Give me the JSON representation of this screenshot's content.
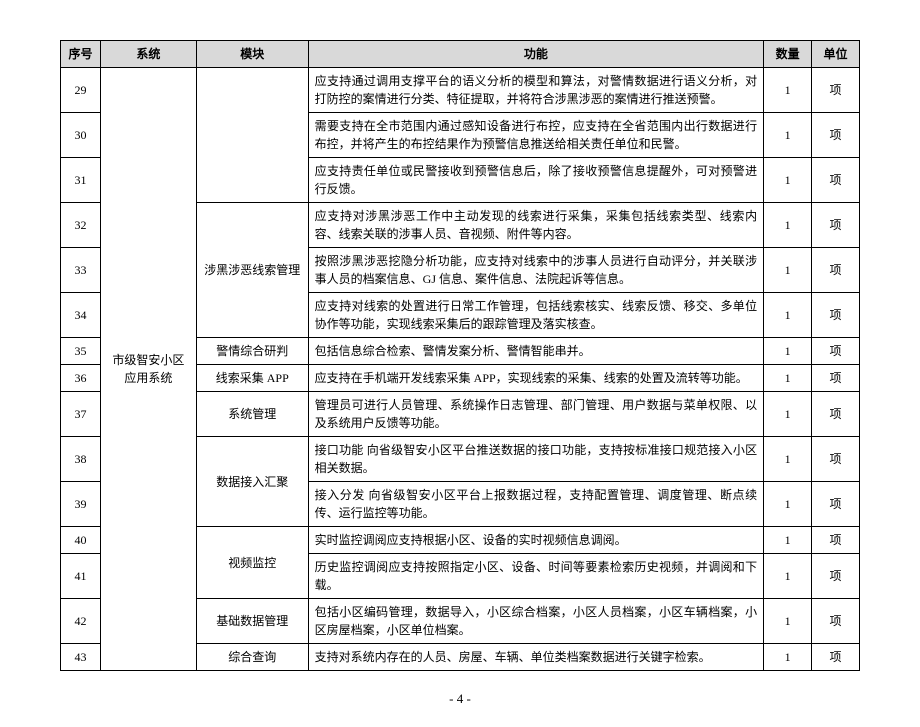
{
  "columns": [
    "序号",
    "系统",
    "模块",
    "功能",
    "数量",
    "单位"
  ],
  "system": "市级智安小区应用系统",
  "page_number": "- 4 -",
  "rows": [
    {
      "seq": "29",
      "module": "",
      "func": "应支持通过调用支撑平台的语义分析的模型和算法，对警情数据进行语义分析，对打防控的案情进行分类、特征提取，并将符合涉黑涉恶的案情进行推送预警。",
      "qty": "1",
      "unit": "项"
    },
    {
      "seq": "30",
      "module": "",
      "func": "需要支持在全市范围内通过感知设备进行布控，应支持在全省范围内出行数据进行布控，并将产生的布控结果作为预警信息推送给相关责任单位和民警。",
      "qty": "1",
      "unit": "项"
    },
    {
      "seq": "31",
      "module": "",
      "func": "应支持责任单位或民警接收到预警信息后，除了接收预警信息提醒外，可对预警进行反馈。",
      "qty": "1",
      "unit": "项"
    },
    {
      "seq": "32",
      "module": "涉黑涉恶线索管理",
      "func": "应支持对涉黑涉恶工作中主动发现的线索进行采集，采集包括线索类型、线索内容、线索关联的涉事人员、音视频、附件等内容。",
      "qty": "1",
      "unit": "项"
    },
    {
      "seq": "33",
      "module": "",
      "func": "按照涉黑涉恶挖隐分析功能，应支持对线索中的涉事人员进行自动评分，并关联涉事人员的档案信息、GJ 信息、案件信息、法院起诉等信息。",
      "qty": "1",
      "unit": "项"
    },
    {
      "seq": "34",
      "module": "",
      "func": "应支持对线索的处置进行日常工作管理，包括线索核实、线索反馈、移交、多单位协作等功能，实现线索采集后的跟踪管理及落实核查。",
      "qty": "1",
      "unit": "项"
    },
    {
      "seq": "35",
      "module": "警情综合研判",
      "func": "包括信息综合检索、警情发案分析、警情智能串并。",
      "qty": "1",
      "unit": "项"
    },
    {
      "seq": "36",
      "module": "线索采集 APP",
      "func": "应支持在手机端开发线索采集 APP，实现线索的采集、线索的处置及流转等功能。",
      "qty": "1",
      "unit": "项"
    },
    {
      "seq": "37",
      "module": "系统管理",
      "func": "管理员可进行人员管理、系统操作日志管理、部门管理、用户数据与菜单权限、以及系统用户反馈等功能。",
      "qty": "1",
      "unit": "项"
    },
    {
      "seq": "38",
      "module": "数据接入汇聚",
      "func": "接口功能 向省级智安小区平台推送数据的接口功能，支持按标准接口规范接入小区相关数据。",
      "qty": "1",
      "unit": "项"
    },
    {
      "seq": "39",
      "module": "",
      "func": "接入分发 向省级智安小区平台上报数据过程，支持配置管理、调度管理、断点续传、运行监控等功能。",
      "qty": "1",
      "unit": "项"
    },
    {
      "seq": "40",
      "module": "视频监控",
      "func": "实时监控调阅应支持根据小区、设备的实时视频信息调阅。",
      "qty": "1",
      "unit": "项"
    },
    {
      "seq": "41",
      "module": "",
      "func": "历史监控调阅应支持按照指定小区、设备、时间等要素检索历史视频，并调阅和下载。",
      "qty": "1",
      "unit": "项"
    },
    {
      "seq": "42",
      "module": "基础数据管理",
      "func": "包括小区编码管理，数据导入，小区综合档案，小区人员档案，小区车辆档案，小区房屋档案，小区单位档案。",
      "qty": "1",
      "unit": "项"
    },
    {
      "seq": "43",
      "module": "综合查询",
      "func": "支持对系统内存在的人员、房屋、车辆、单位类档案数据进行关键字检索。",
      "qty": "1",
      "unit": "项"
    }
  ]
}
